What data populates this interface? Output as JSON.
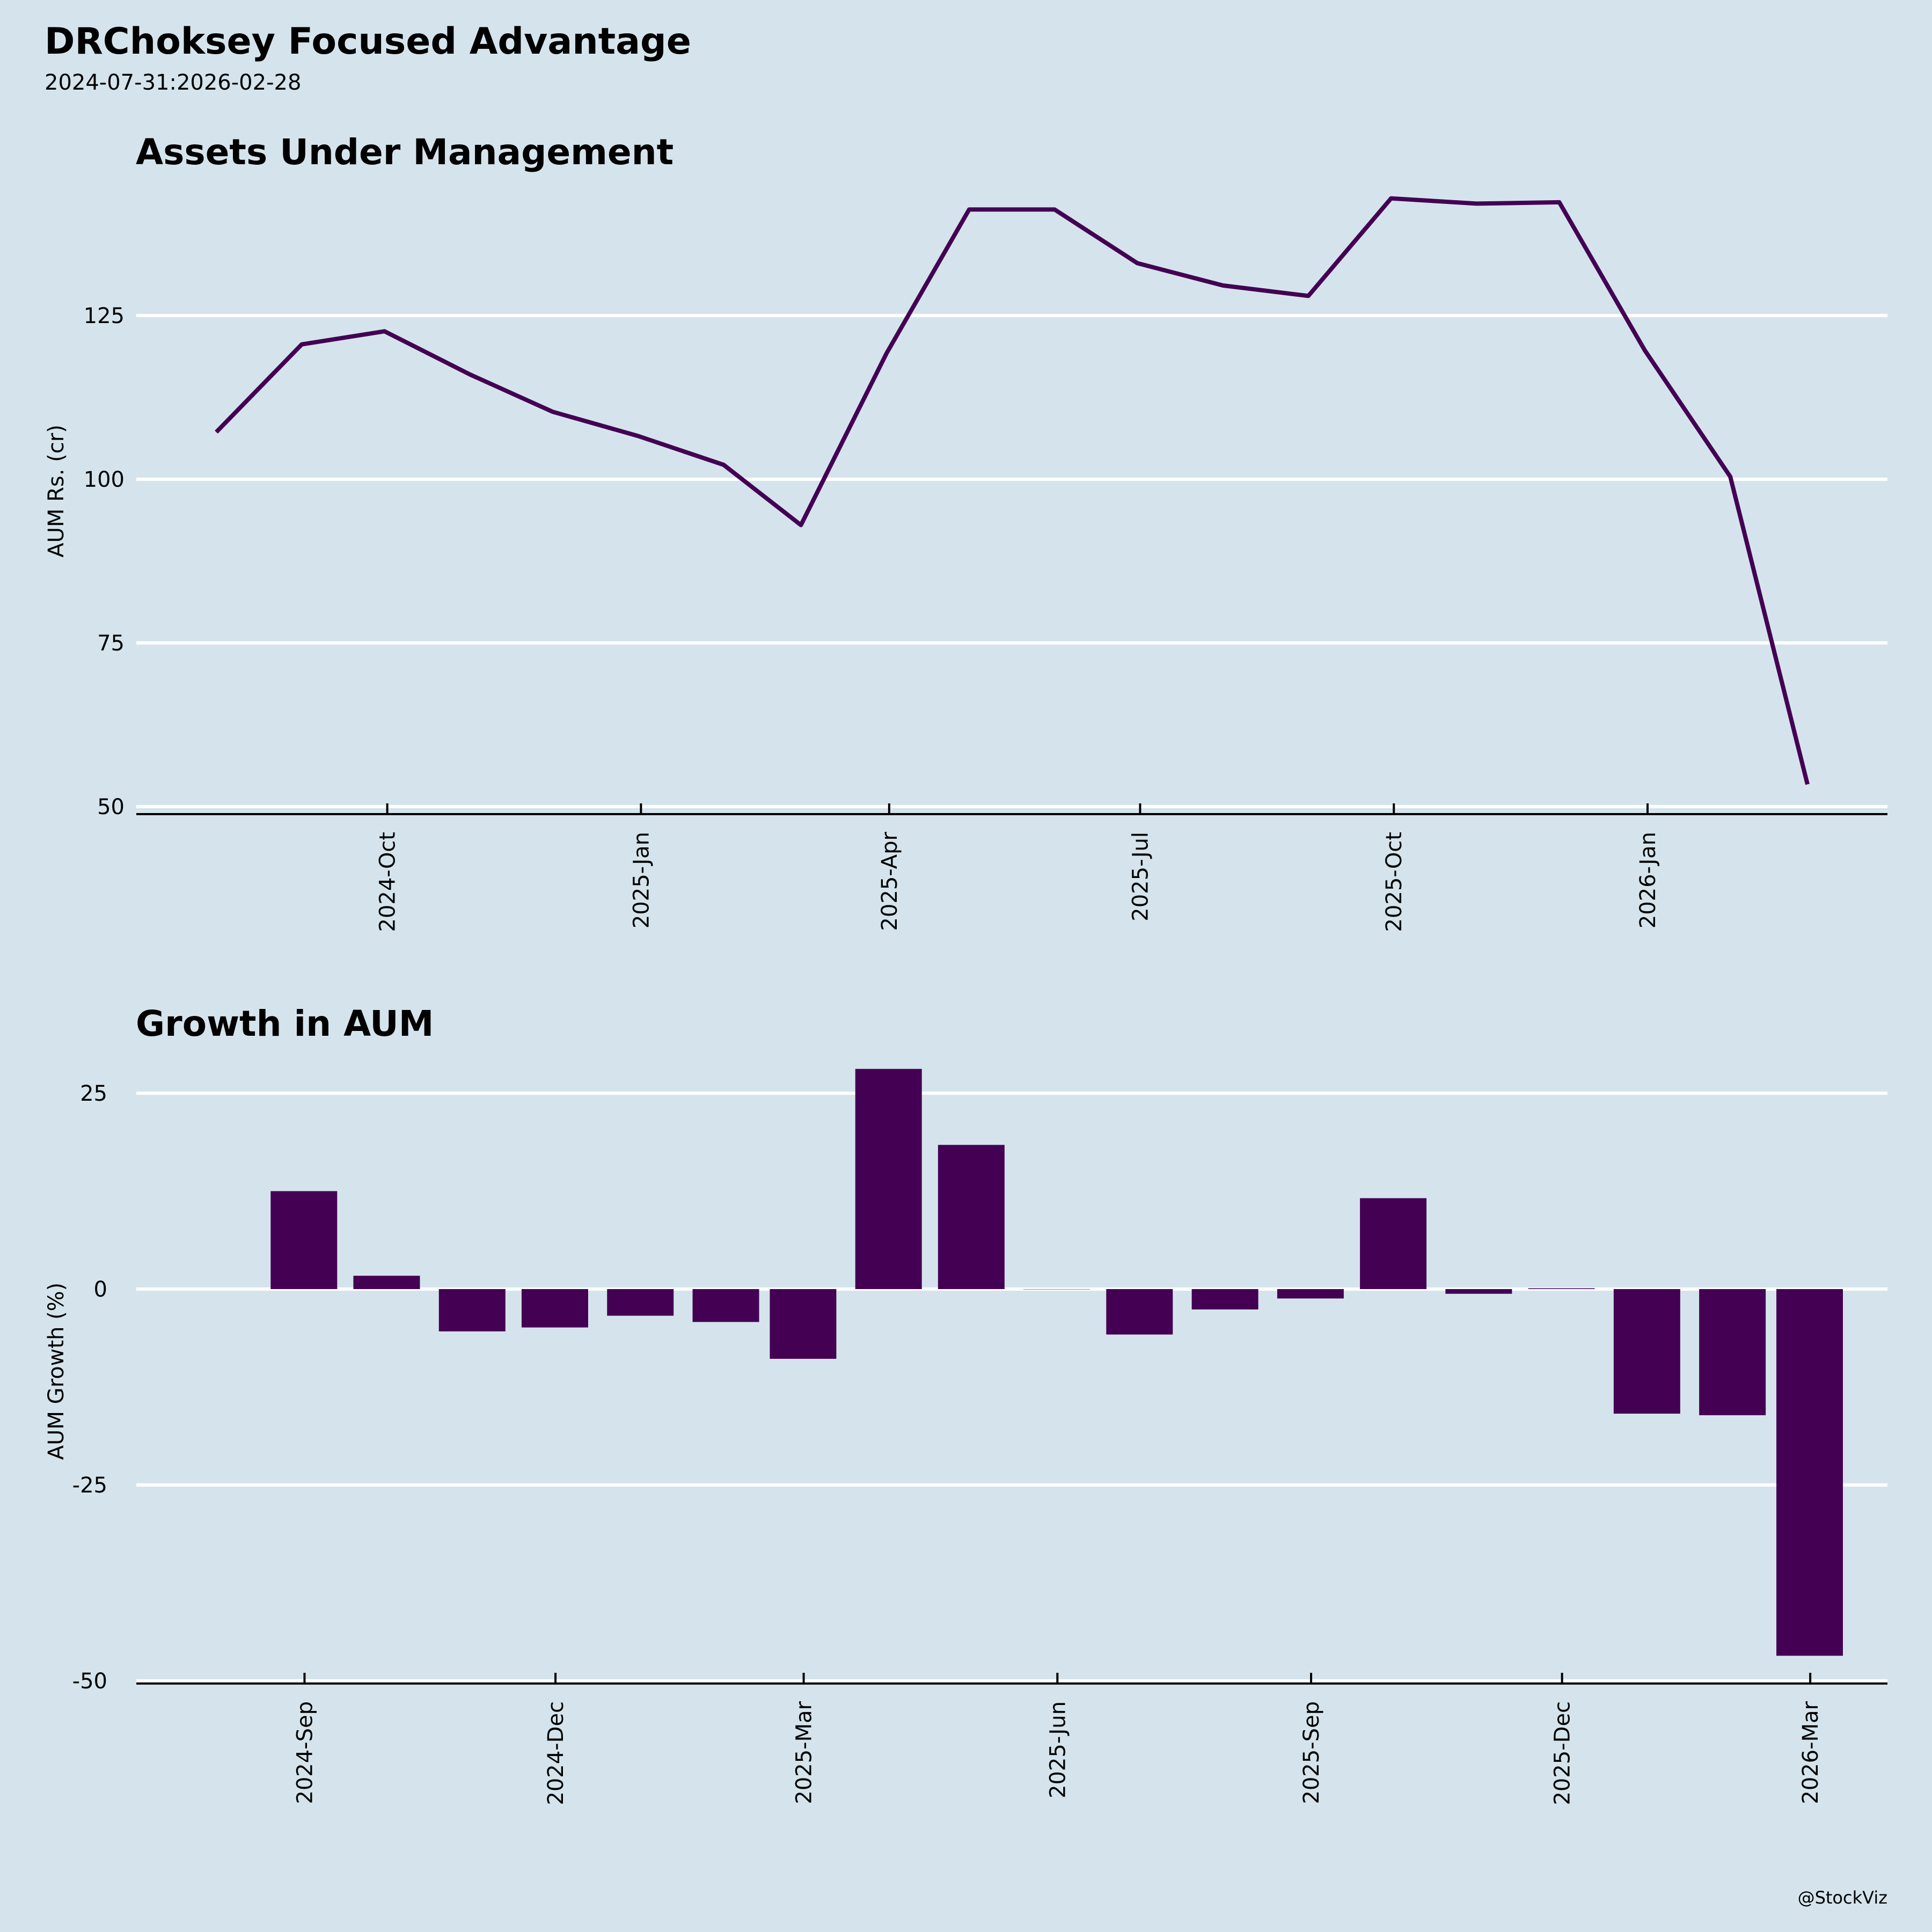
{
  "header": {
    "title": "DRChoksey Focused Advantage",
    "subtitle": "2024-07-31:2026-02-28"
  },
  "watermark": "@StockViz",
  "colors": {
    "background": "#d5e4ec",
    "series": "#440154",
    "grid": "#ffffff",
    "axis": "#000000"
  },
  "chart_data": [
    {
      "type": "line",
      "title": "Assets Under Management",
      "xlabel": "",
      "ylabel": "AUM Rs. (cr)",
      "ylim": [
        49,
        150
      ],
      "yticks": [
        50,
        75,
        100,
        125
      ],
      "ytick_labels": [
        "50",
        "75",
        "100",
        "125"
      ],
      "xticks": [
        "2024-10-01",
        "2025-01-01",
        "2025-04-01",
        "2025-07-01",
        "2025-10-01",
        "2026-01-01"
      ],
      "xtick_labels": [
        "2024-Oct",
        "2025-Jan",
        "2025-Apr",
        "2025-Jul",
        "2025-Oct",
        "2026-Jan"
      ],
      "grid": "horizontal",
      "series": [
        {
          "name": "AUM",
          "x": [
            "2024-07-31",
            "2024-08-31",
            "2024-09-30",
            "2024-10-31",
            "2024-11-30",
            "2024-12-31",
            "2025-01-31",
            "2025-02-28",
            "2025-03-31",
            "2025-04-30",
            "2025-05-31",
            "2025-06-30",
            "2025-07-31",
            "2025-08-31",
            "2025-09-30",
            "2025-10-31",
            "2025-11-30",
            "2025-12-31",
            "2026-01-31",
            "2026-02-28"
          ],
          "values": [
            107.2,
            120.6,
            122.6,
            116.0,
            110.3,
            106.6,
            102.2,
            93.0,
            119.2,
            141.2,
            141.2,
            133.0,
            129.6,
            128.0,
            142.9,
            142.1,
            142.3,
            119.7,
            100.4,
            53.4
          ]
        }
      ]
    },
    {
      "type": "bar",
      "title": "Growth in AUM",
      "xlabel": "",
      "ylabel": "AUM Growth (%)",
      "ylim": [
        -50,
        30
      ],
      "yticks": [
        -50,
        -25,
        0,
        25
      ],
      "ytick_labels": [
        "-50",
        "-25",
        "0",
        "25"
      ],
      "xticks": [
        "2024-09-01",
        "2024-12-01",
        "2025-03-01",
        "2025-06-01",
        "2025-09-01",
        "2025-12-01",
        "2026-03-01"
      ],
      "xtick_labels": [
        "2024-Sep",
        "2024-Dec",
        "2025-Mar",
        "2025-Jun",
        "2025-Sep",
        "2025-Dec",
        "2026-Mar"
      ],
      "grid": "horizontal",
      "series": [
        {
          "name": "AUM Growth",
          "x": [
            "2024-08-31",
            "2024-09-30",
            "2024-10-31",
            "2024-11-30",
            "2024-12-31",
            "2025-01-31",
            "2025-02-28",
            "2025-03-31",
            "2025-04-30",
            "2025-05-31",
            "2025-06-30",
            "2025-07-31",
            "2025-08-31",
            "2025-09-30",
            "2025-10-31",
            "2025-11-30",
            "2025-12-31",
            "2026-01-31",
            "2026-02-28"
          ],
          "values": [
            12.5,
            1.7,
            -5.4,
            -4.9,
            -3.4,
            -4.2,
            -8.9,
            28.1,
            18.4,
            0.0,
            -5.8,
            -2.6,
            -1.2,
            11.6,
            -0.6,
            0.1,
            -15.9,
            -16.1,
            -46.8
          ]
        }
      ]
    }
  ]
}
